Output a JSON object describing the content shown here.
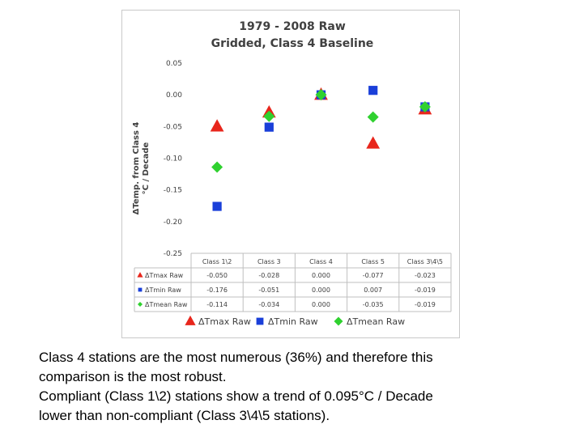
{
  "chart_data": {
    "type": "scatter",
    "title": [
      "1979 - 2008 Raw",
      "Gridded, Class 4 Baseline"
    ],
    "ylabel": [
      "ΔTemp. from Class 4",
      "°C / Decade"
    ],
    "xlabel": "",
    "ylim": [
      -0.25,
      0.05
    ],
    "y_ticks": [
      0.05,
      0.0,
      -0.05,
      -0.1,
      -0.15,
      -0.2,
      -0.25
    ],
    "y_tick_labels": [
      "0.05",
      "0.00",
      "-0.05",
      "-0.10",
      "-0.15",
      "-0.20",
      "-0.25"
    ],
    "categories": [
      "Class 1\\2",
      "Class 3",
      "Class 4",
      "Class 5",
      "Class 3\\4\\5"
    ],
    "series": [
      {
        "name": "ΔTmax Raw",
        "marker": "triangle",
        "color": "#e8261c",
        "values": [
          -0.05,
          -0.028,
          0.0,
          -0.077,
          -0.023
        ],
        "labels": [
          "-0.050",
          "-0.028",
          "0.000",
          "-0.077",
          "-0.023"
        ]
      },
      {
        "name": "ΔTmin Raw",
        "marker": "square",
        "color": "#1a3fd9",
        "values": [
          -0.176,
          -0.051,
          0.0,
          0.007,
          -0.019
        ],
        "labels": [
          "-0.176",
          "-0.051",
          "0.000",
          "0.007",
          "-0.019"
        ]
      },
      {
        "name": "ΔTmean Raw",
        "marker": "diamond",
        "color": "#2fd12f",
        "values": [
          -0.114,
          -0.034,
          0.0,
          -0.035,
          -0.019
        ],
        "labels": [
          "-0.114",
          "-0.034",
          "0.000",
          "-0.035",
          "-0.019"
        ]
      }
    ],
    "gridlines": false,
    "legend": "bottom",
    "data_table": true
  },
  "caption": {
    "line1": "Class 4 stations are the most numerous (36%) and therefore this",
    "line2": "comparison is the most robust.",
    "line3": "Compliant (Class 1\\2) stations show a trend of 0.095°C / Decade",
    "line4": "lower than non-compliant (Class 3\\4\\5 stations)."
  }
}
